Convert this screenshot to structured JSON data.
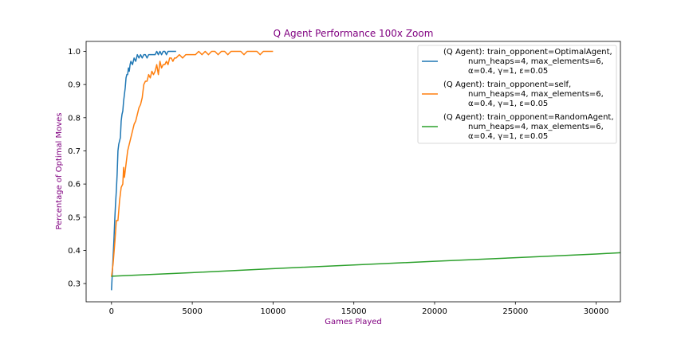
{
  "chart_data": {
    "type": "line",
    "title": "Q Agent Performance 100x Zoom",
    "xlabel": "Games Played",
    "ylabel": "Percentage of Optimal Moves",
    "xlim": [
      -1570,
      31500
    ],
    "ylim": [
      0.245,
      1.03
    ],
    "xticks": [
      0,
      5000,
      10000,
      15000,
      20000,
      25000,
      30000
    ],
    "yticks": [
      0.3,
      0.4,
      0.5,
      0.6,
      0.7,
      0.8,
      0.9,
      1.0
    ],
    "xtick_labels": [
      "0",
      "5000",
      "10000",
      "15000",
      "20000",
      "25000",
      "30000"
    ],
    "ytick_labels": [
      "0.3",
      "0.4",
      "0.5",
      "0.6",
      "0.7",
      "0.8",
      "0.9",
      "1.0"
    ],
    "grid": false,
    "legend_position": "top-right",
    "series": [
      {
        "name": "(Q Agent): train_opponent=OptimalAgent,\n          num_heaps=4, max_elements=6,\n          α=0.4, γ=1, ε=0.05",
        "color": "#1f77b4",
        "x": [
          0,
          50,
          100,
          150,
          200,
          250,
          300,
          350,
          400,
          450,
          500,
          550,
          600,
          650,
          700,
          750,
          800,
          850,
          900,
          950,
          1000,
          1050,
          1100,
          1150,
          1200,
          1300,
          1400,
          1500,
          1600,
          1700,
          1800,
          1900,
          2000,
          2100,
          2200,
          2300,
          2400,
          2500,
          2600,
          2700,
          2800,
          2900,
          3000,
          3100,
          3200,
          3300,
          3400,
          3500,
          3600,
          3700,
          3800,
          3900,
          4000
        ],
        "y": [
          0.28,
          0.33,
          0.38,
          0.43,
          0.49,
          0.54,
          0.58,
          0.63,
          0.7,
          0.72,
          0.73,
          0.74,
          0.79,
          0.81,
          0.82,
          0.85,
          0.87,
          0.89,
          0.92,
          0.93,
          0.93,
          0.95,
          0.94,
          0.96,
          0.97,
          0.96,
          0.98,
          0.97,
          0.99,
          0.98,
          0.99,
          0.98,
          0.99,
          0.99,
          0.98,
          0.99,
          0.99,
          0.99,
          0.99,
          0.99,
          1.0,
          0.99,
          1.0,
          0.99,
          1.0,
          1.0,
          0.99,
          1.0,
          1.0,
          1.0,
          1.0,
          1.0,
          1.0
        ]
      },
      {
        "name": "(Q Agent): train_opponent=self,\n          num_heaps=4, max_elements=6,\n          α=0.4, γ=1, ε=0.05",
        "color": "#ff7f0e",
        "x": [
          0,
          100,
          200,
          300,
          400,
          500,
          600,
          700,
          750,
          800,
          850,
          900,
          1000,
          1100,
          1200,
          1300,
          1400,
          1500,
          1600,
          1700,
          1800,
          1900,
          2000,
          2100,
          2200,
          2300,
          2400,
          2500,
          2600,
          2700,
          2800,
          2900,
          3000,
          3100,
          3200,
          3300,
          3400,
          3500,
          3600,
          3700,
          3800,
          3900,
          4000,
          4200,
          4400,
          4600,
          4800,
          5000,
          5200,
          5400,
          5600,
          5800,
          6000,
          6200,
          6400,
          6600,
          6800,
          7000,
          7200,
          7400,
          7600,
          7800,
          8000,
          8200,
          8400,
          8600,
          8800,
          9000,
          9200,
          9400,
          9600,
          9800,
          10000
        ],
        "y": [
          0.32,
          0.36,
          0.42,
          0.49,
          0.49,
          0.55,
          0.59,
          0.6,
          0.65,
          0.62,
          0.64,
          0.66,
          0.7,
          0.72,
          0.74,
          0.76,
          0.78,
          0.79,
          0.81,
          0.83,
          0.84,
          0.86,
          0.9,
          0.91,
          0.91,
          0.93,
          0.92,
          0.94,
          0.93,
          0.94,
          0.96,
          0.93,
          0.97,
          0.95,
          0.96,
          0.96,
          0.97,
          0.96,
          0.98,
          0.98,
          0.97,
          0.98,
          0.98,
          0.99,
          0.98,
          0.99,
          0.99,
          0.99,
          0.99,
          1.0,
          0.99,
          1.0,
          0.99,
          1.0,
          1.0,
          0.99,
          1.0,
          1.0,
          0.99,
          1.0,
          1.0,
          1.0,
          1.0,
          0.99,
          1.0,
          1.0,
          1.0,
          1.0,
          0.99,
          1.0,
          1.0,
          1.0,
          1.0
        ]
      },
      {
        "name": "(Q Agent): train_opponent=RandomAgent,\n          num_heaps=4, max_elements=6,\n          α=0.4, γ=1, ε=0.05",
        "color": "#2ca02c",
        "x": [
          0,
          5000,
          10000,
          15000,
          20000,
          25000,
          30000,
          31500
        ],
        "y": [
          0.322,
          0.333,
          0.345,
          0.356,
          0.367,
          0.378,
          0.389,
          0.393
        ]
      }
    ]
  }
}
